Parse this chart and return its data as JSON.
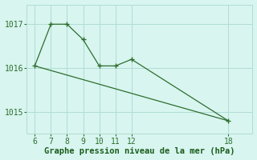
{
  "line1_x": [
    6,
    7,
    8,
    9,
    10,
    11,
    12,
    18
  ],
  "line1_y": [
    1016.05,
    1017.0,
    1017.0,
    1016.65,
    1016.05,
    1016.05,
    1016.2,
    1014.8
  ],
  "line2_x": [
    6,
    18
  ],
  "line2_y": [
    1016.05,
    1014.8
  ],
  "line_color": "#2d6e2d",
  "background_color": "#d8f5f0",
  "grid_color": "#b0ddd4",
  "xlabel": "Graphe pression niveau de la mer (hPa)",
  "xlim": [
    5.5,
    19.5
  ],
  "ylim": [
    1014.5,
    1017.45
  ],
  "xticks": [
    6,
    7,
    8,
    9,
    10,
    11,
    12,
    18
  ],
  "yticks": [
    1015,
    1016,
    1017
  ],
  "xlabel_color": "#1a5c1a",
  "xlabel_fontsize": 7.5,
  "tick_fontsize": 7.0
}
